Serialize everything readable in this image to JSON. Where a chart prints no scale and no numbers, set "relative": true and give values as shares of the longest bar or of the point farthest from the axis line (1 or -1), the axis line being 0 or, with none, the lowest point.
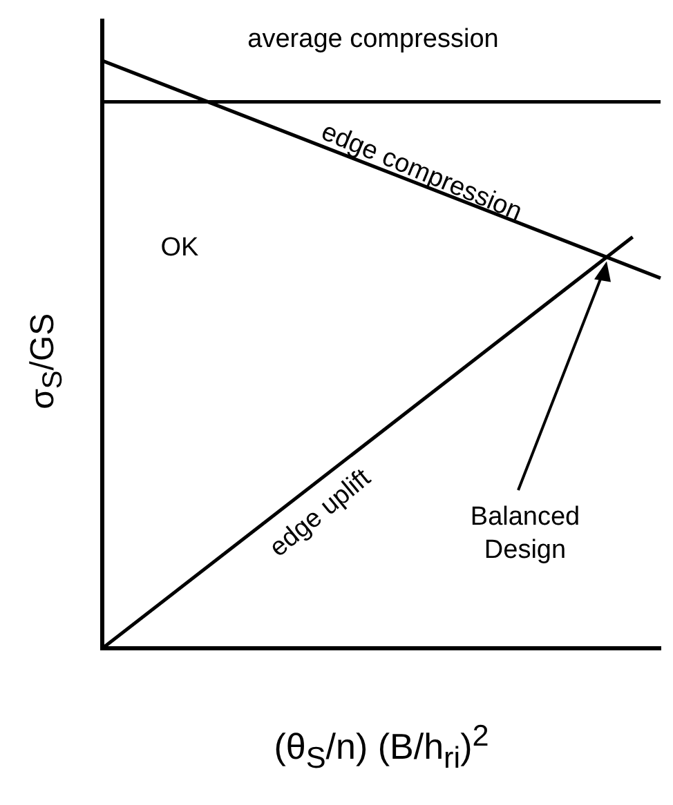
{
  "chart_data": {
    "type": "line",
    "relative": true,
    "xlabel": "(θ$_{S}$/n) (B/h$_{ri}$)$^{2}$",
    "ylabel": "σ$_{S}$/GS",
    "grid": false,
    "legend": false,
    "marker": "none",
    "line_style": "solid",
    "categories": [
      null,
      null,
      null,
      null,
      null,
      null,
      null,
      null,
      null,
      null,
      null,
      null,
      null,
      null,
      null,
      null,
      null,
      null,
      null,
      null,
      null
    ],
    "series": [
      {
        "color": "#000000",
        "values": [
          0.93,
          null,
          null,
          null,
          null,
          null,
          null,
          null,
          null,
          null,
          null,
          null,
          null,
          null,
          null,
          null,
          null,
          null,
          null,
          null,
          0.93
        ]
      },
      {
        "color": "#000000",
        "values": [
          1,
          null,
          null,
          null,
          null,
          null,
          null,
          null,
          null,
          null,
          null,
          null,
          null,
          null,
          null,
          null,
          null,
          null,
          null,
          null,
          0.63
        ]
      },
      {
        "color": "#000000",
        "values": [
          0,
          null,
          null,
          null,
          null,
          null,
          null,
          null,
          null,
          null,
          null,
          null,
          null,
          null,
          null,
          null,
          null,
          null,
          null,
          0.7,
          null
        ]
      }
    ],
    "annotations": [
      "average compression",
      "edge compression",
      "edge uplift",
      "OK",
      "Balanced Design"
    ]
  }
}
